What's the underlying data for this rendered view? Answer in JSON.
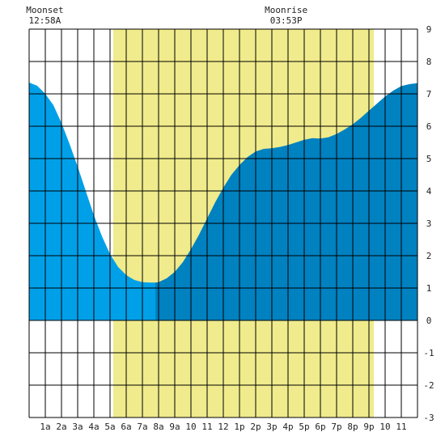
{
  "chart_data": {
    "type": "area",
    "title": "",
    "xlabel": "",
    "ylabel": "",
    "xlim": [
      0,
      24
    ],
    "ylim": [
      -3,
      9
    ],
    "grid": true,
    "x_ticks": [
      {
        "x": 1,
        "label": "1a"
      },
      {
        "x": 2,
        "label": "2a"
      },
      {
        "x": 3,
        "label": "3a"
      },
      {
        "x": 4,
        "label": "4a"
      },
      {
        "x": 5,
        "label": "5a"
      },
      {
        "x": 6,
        "label": "6a"
      },
      {
        "x": 7,
        "label": "7a"
      },
      {
        "x": 8,
        "label": "8a"
      },
      {
        "x": 9,
        "label": "9a"
      },
      {
        "x": 10,
        "label": "10"
      },
      {
        "x": 11,
        "label": "11"
      },
      {
        "x": 12,
        "label": "12"
      },
      {
        "x": 13,
        "label": "1p"
      },
      {
        "x": 14,
        "label": "2p"
      },
      {
        "x": 15,
        "label": "3p"
      },
      {
        "x": 16,
        "label": "4p"
      },
      {
        "x": 17,
        "label": "5p"
      },
      {
        "x": 18,
        "label": "6p"
      },
      {
        "x": 19,
        "label": "7p"
      },
      {
        "x": 20,
        "label": "8p"
      },
      {
        "x": 21,
        "label": "9p"
      },
      {
        "x": 22,
        "label": "10"
      },
      {
        "x": 23,
        "label": "11"
      }
    ],
    "y_ticks": [
      -3,
      -2,
      -1,
      0,
      1,
      2,
      3,
      4,
      5,
      6,
      7,
      8,
      9
    ],
    "daylight": {
      "start": 5.2,
      "end": 21.3,
      "color": "#f0eb8c"
    },
    "moon_events": [
      {
        "name": "Moonset",
        "time": "12:58A",
        "x": 0.97
      },
      {
        "name": "Moonrise",
        "time": "03:53P",
        "x": 15.88
      }
    ],
    "series": [
      {
        "x": [
          0,
          0.5,
          1,
          1.5,
          2,
          2.5,
          3,
          3.5,
          4,
          4.5,
          5,
          5.5,
          6,
          6.5,
          7,
          7.5,
          7.8
        ],
        "y": [
          7.35,
          7.25,
          7.0,
          6.65,
          6.1,
          5.45,
          4.75,
          4.0,
          3.25,
          2.6,
          2.05,
          1.65,
          1.4,
          1.25,
          1.18,
          1.17,
          1.17
        ],
        "color": "#00a0e8"
      },
      {
        "x": [
          7.8,
          8.0,
          8.5,
          9,
          9.5,
          10,
          10.5,
          11,
          11.5,
          12,
          12.5,
          13,
          13.5,
          14,
          14.5,
          15,
          15.5,
          16,
          16.5,
          17,
          17.5,
          18,
          18.5,
          19,
          19.5,
          20,
          20.5,
          21,
          21.5,
          22,
          22.5,
          23,
          23.5,
          24
        ],
        "y": [
          1.17,
          1.18,
          1.3,
          1.5,
          1.8,
          2.2,
          2.65,
          3.15,
          3.65,
          4.1,
          4.5,
          4.8,
          5.05,
          5.22,
          5.3,
          5.32,
          5.36,
          5.42,
          5.5,
          5.58,
          5.63,
          5.62,
          5.66,
          5.76,
          5.9,
          6.06,
          6.26,
          6.48,
          6.7,
          6.92,
          7.1,
          7.24,
          7.3,
          7.33
        ],
        "color": "#0081c0"
      }
    ]
  }
}
